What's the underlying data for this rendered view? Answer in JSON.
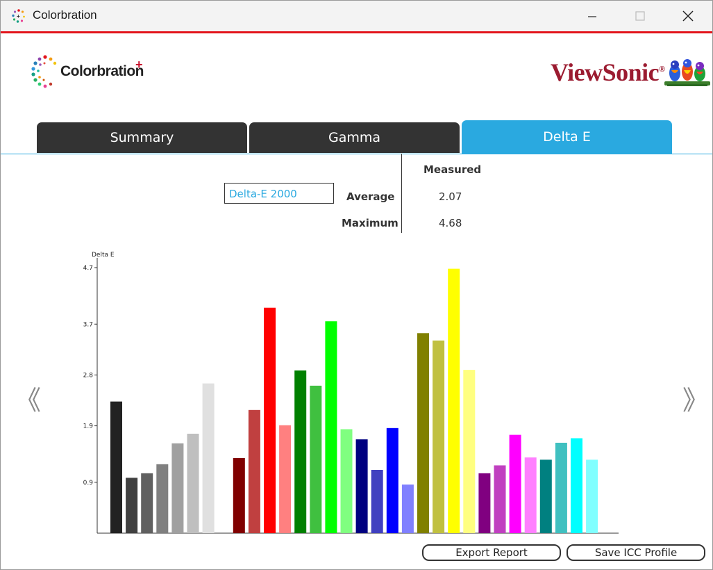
{
  "window": {
    "title": "Colorbration",
    "icon": "colorbration-app-icon",
    "controls": [
      "minimize-icon",
      "maximize-icon",
      "close-icon"
    ]
  },
  "branding": {
    "left_logo_text": "Colorbration",
    "left_logo_plus": "+",
    "right_logo_text": "ViewSonic",
    "right_logo_reg": "®",
    "brand_red": "#e3141b",
    "viewsonic_color": "#9b1b30",
    "accent": "#2aa9e0"
  },
  "tabs": [
    {
      "label": "Summary",
      "active": false
    },
    {
      "label": "Gamma",
      "active": false
    },
    {
      "label": "Delta E",
      "active": true
    }
  ],
  "metric": {
    "selected": "Delta-E 2000",
    "column_header": "Measured",
    "rows": [
      {
        "label": "Average",
        "value": "2.07"
      },
      {
        "label": "Maximum",
        "value": "4.68"
      }
    ]
  },
  "nav": {
    "prev_glyph": "《",
    "next_glyph": "》"
  },
  "chart_data": {
    "type": "bar",
    "ylabel": "Delta E",
    "xlabel": "",
    "ylim": [
      0,
      4.7
    ],
    "yticks": [
      0.9,
      1.9,
      2.8,
      3.7,
      4.7
    ],
    "grid": false,
    "legend": "none",
    "bars": [
      {
        "value": 2.33,
        "color": "#222222"
      },
      {
        "value": 0.98,
        "color": "#404040"
      },
      {
        "value": 1.06,
        "color": "#606060"
      },
      {
        "value": 1.22,
        "color": "#808080"
      },
      {
        "value": 1.59,
        "color": "#a0a0a0"
      },
      {
        "value": 1.76,
        "color": "#bfbfbf"
      },
      {
        "value": 2.65,
        "color": "#e0e0e0"
      },
      {
        "value": null,
        "color": ""
      },
      {
        "value": 1.33,
        "color": "#800000"
      },
      {
        "value": 2.18,
        "color": "#c04040"
      },
      {
        "value": 3.99,
        "color": "#ff0000"
      },
      {
        "value": 1.91,
        "color": "#ff8080"
      },
      {
        "value": 2.88,
        "color": "#008000"
      },
      {
        "value": 2.61,
        "color": "#40c040"
      },
      {
        "value": 3.75,
        "color": "#00ff00"
      },
      {
        "value": 1.84,
        "color": "#80ff80"
      },
      {
        "value": 1.66,
        "color": "#000080"
      },
      {
        "value": 1.12,
        "color": "#4040c0"
      },
      {
        "value": 1.86,
        "color": "#0000ff"
      },
      {
        "value": 0.86,
        "color": "#8080ff"
      },
      {
        "value": 3.54,
        "color": "#808000"
      },
      {
        "value": 3.41,
        "color": "#c0c040"
      },
      {
        "value": 4.68,
        "color": "#ffff00"
      },
      {
        "value": 2.89,
        "color": "#ffff80"
      },
      {
        "value": 1.06,
        "color": "#800080"
      },
      {
        "value": 1.2,
        "color": "#c040c0"
      },
      {
        "value": 1.74,
        "color": "#ff00ff"
      },
      {
        "value": 1.34,
        "color": "#ff80ff"
      },
      {
        "value": 1.3,
        "color": "#008080"
      },
      {
        "value": 1.6,
        "color": "#40c0c0"
      },
      {
        "value": 1.68,
        "color": "#00ffff"
      },
      {
        "value": 1.3,
        "color": "#80ffff"
      }
    ]
  },
  "buttons": {
    "export": "Export Report",
    "save_icc": "Save ICC Profile"
  }
}
